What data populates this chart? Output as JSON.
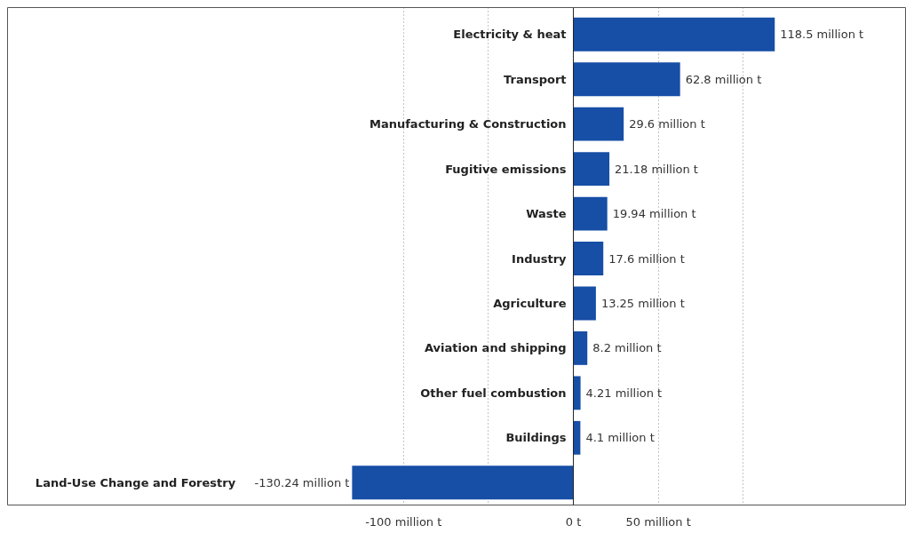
{
  "chart_data": {
    "type": "bar",
    "orientation": "horizontal",
    "categories": [
      "Electricity & heat",
      "Transport",
      "Manufacturing & Construction",
      "Fugitive emissions",
      "Waste",
      "Industry",
      "Agriculture",
      "Aviation and shipping",
      "Other fuel combustion",
      "Buildings",
      "Land-Use Change and Forestry"
    ],
    "values": [
      118.5,
      62.8,
      29.6,
      21.18,
      19.94,
      17.6,
      13.25,
      8.2,
      4.21,
      4.1,
      -130.24
    ],
    "value_labels": [
      "118.5 million t",
      "62.8 million t",
      "29.6 million t",
      "21.18 million t",
      "19.94 million t",
      "17.6 million t",
      "13.25 million t",
      "8.2 million t",
      "4.21 million t",
      "4.1 million t",
      "-130.24 million t"
    ],
    "color": "#174ea6",
    "xlim": [
      -333,
      196
    ],
    "xticks": [
      {
        "value": -100,
        "label": "-100 million t"
      },
      {
        "value": -50,
        "label": null
      },
      {
        "value": 0,
        "label": "0 t"
      },
      {
        "value": 50,
        "label": "50 million t"
      },
      {
        "value": 100,
        "label": null
      }
    ],
    "grid": "x"
  }
}
